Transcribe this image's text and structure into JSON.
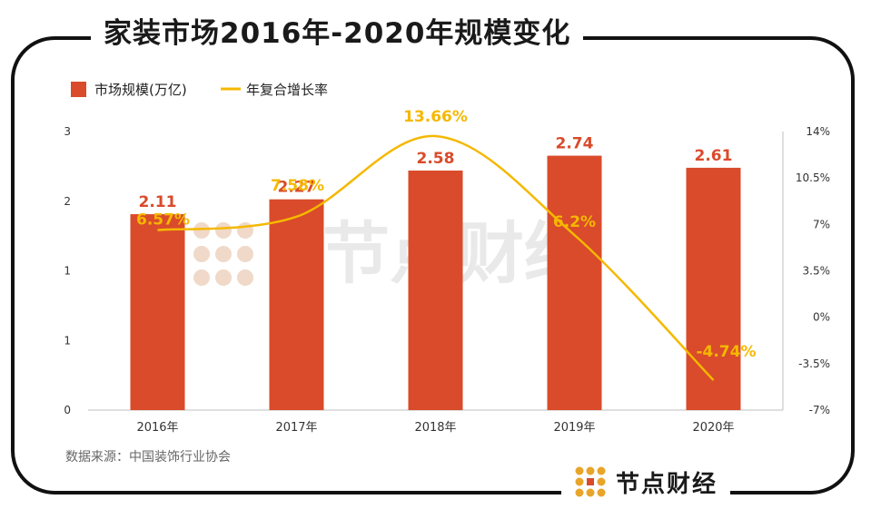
{
  "title": "家装市场2016年-2020年规模变化",
  "source": "数据来源：中国装饰行业协会",
  "brand": "节点财经",
  "watermark": "节点财经",
  "colors": {
    "bar": "#d94b2b",
    "line": "#f5b800",
    "axis": "#bfbfbf",
    "frame": "#111111",
    "watermark": "#e9e9e9"
  },
  "chart_data": {
    "type": "bar",
    "categories": [
      "2016年",
      "2017年",
      "2018年",
      "2019年",
      "2020年"
    ],
    "series": [
      {
        "name": "市场规模(万亿)",
        "type": "bar",
        "axis": "left",
        "values": [
          2.11,
          2.27,
          2.58,
          2.74,
          2.61
        ],
        "labels": [
          "2.11",
          "2.27",
          "2.58",
          "2.74",
          "2.61"
        ]
      },
      {
        "name": "年复合增长率",
        "type": "line",
        "axis": "right",
        "values": [
          6.57,
          7.58,
          13.66,
          6.2,
          -4.74
        ],
        "labels": [
          "6.57%",
          "7.58%",
          "13.66%",
          "6.2%",
          "-4.74%"
        ]
      }
    ],
    "left_axis": {
      "ylim": [
        0,
        3
      ],
      "ticks": [
        0,
        0.75,
        1.5,
        2.25,
        3
      ],
      "tick_labels": [
        "0",
        "1",
        "1",
        "2",
        "3"
      ]
    },
    "right_axis": {
      "ylim": [
        -7,
        14
      ],
      "ticks": [
        -7,
        -3.5,
        0,
        3.5,
        7,
        10.5,
        14
      ],
      "tick_labels": [
        "-7%",
        "-3.5%",
        "0%",
        "3.5%",
        "7%",
        "10.5%",
        "14%"
      ]
    },
    "legend": {
      "position": "top-left",
      "entries": [
        "市场规模(万亿)",
        "年复合增长率"
      ]
    },
    "grid": false
  }
}
